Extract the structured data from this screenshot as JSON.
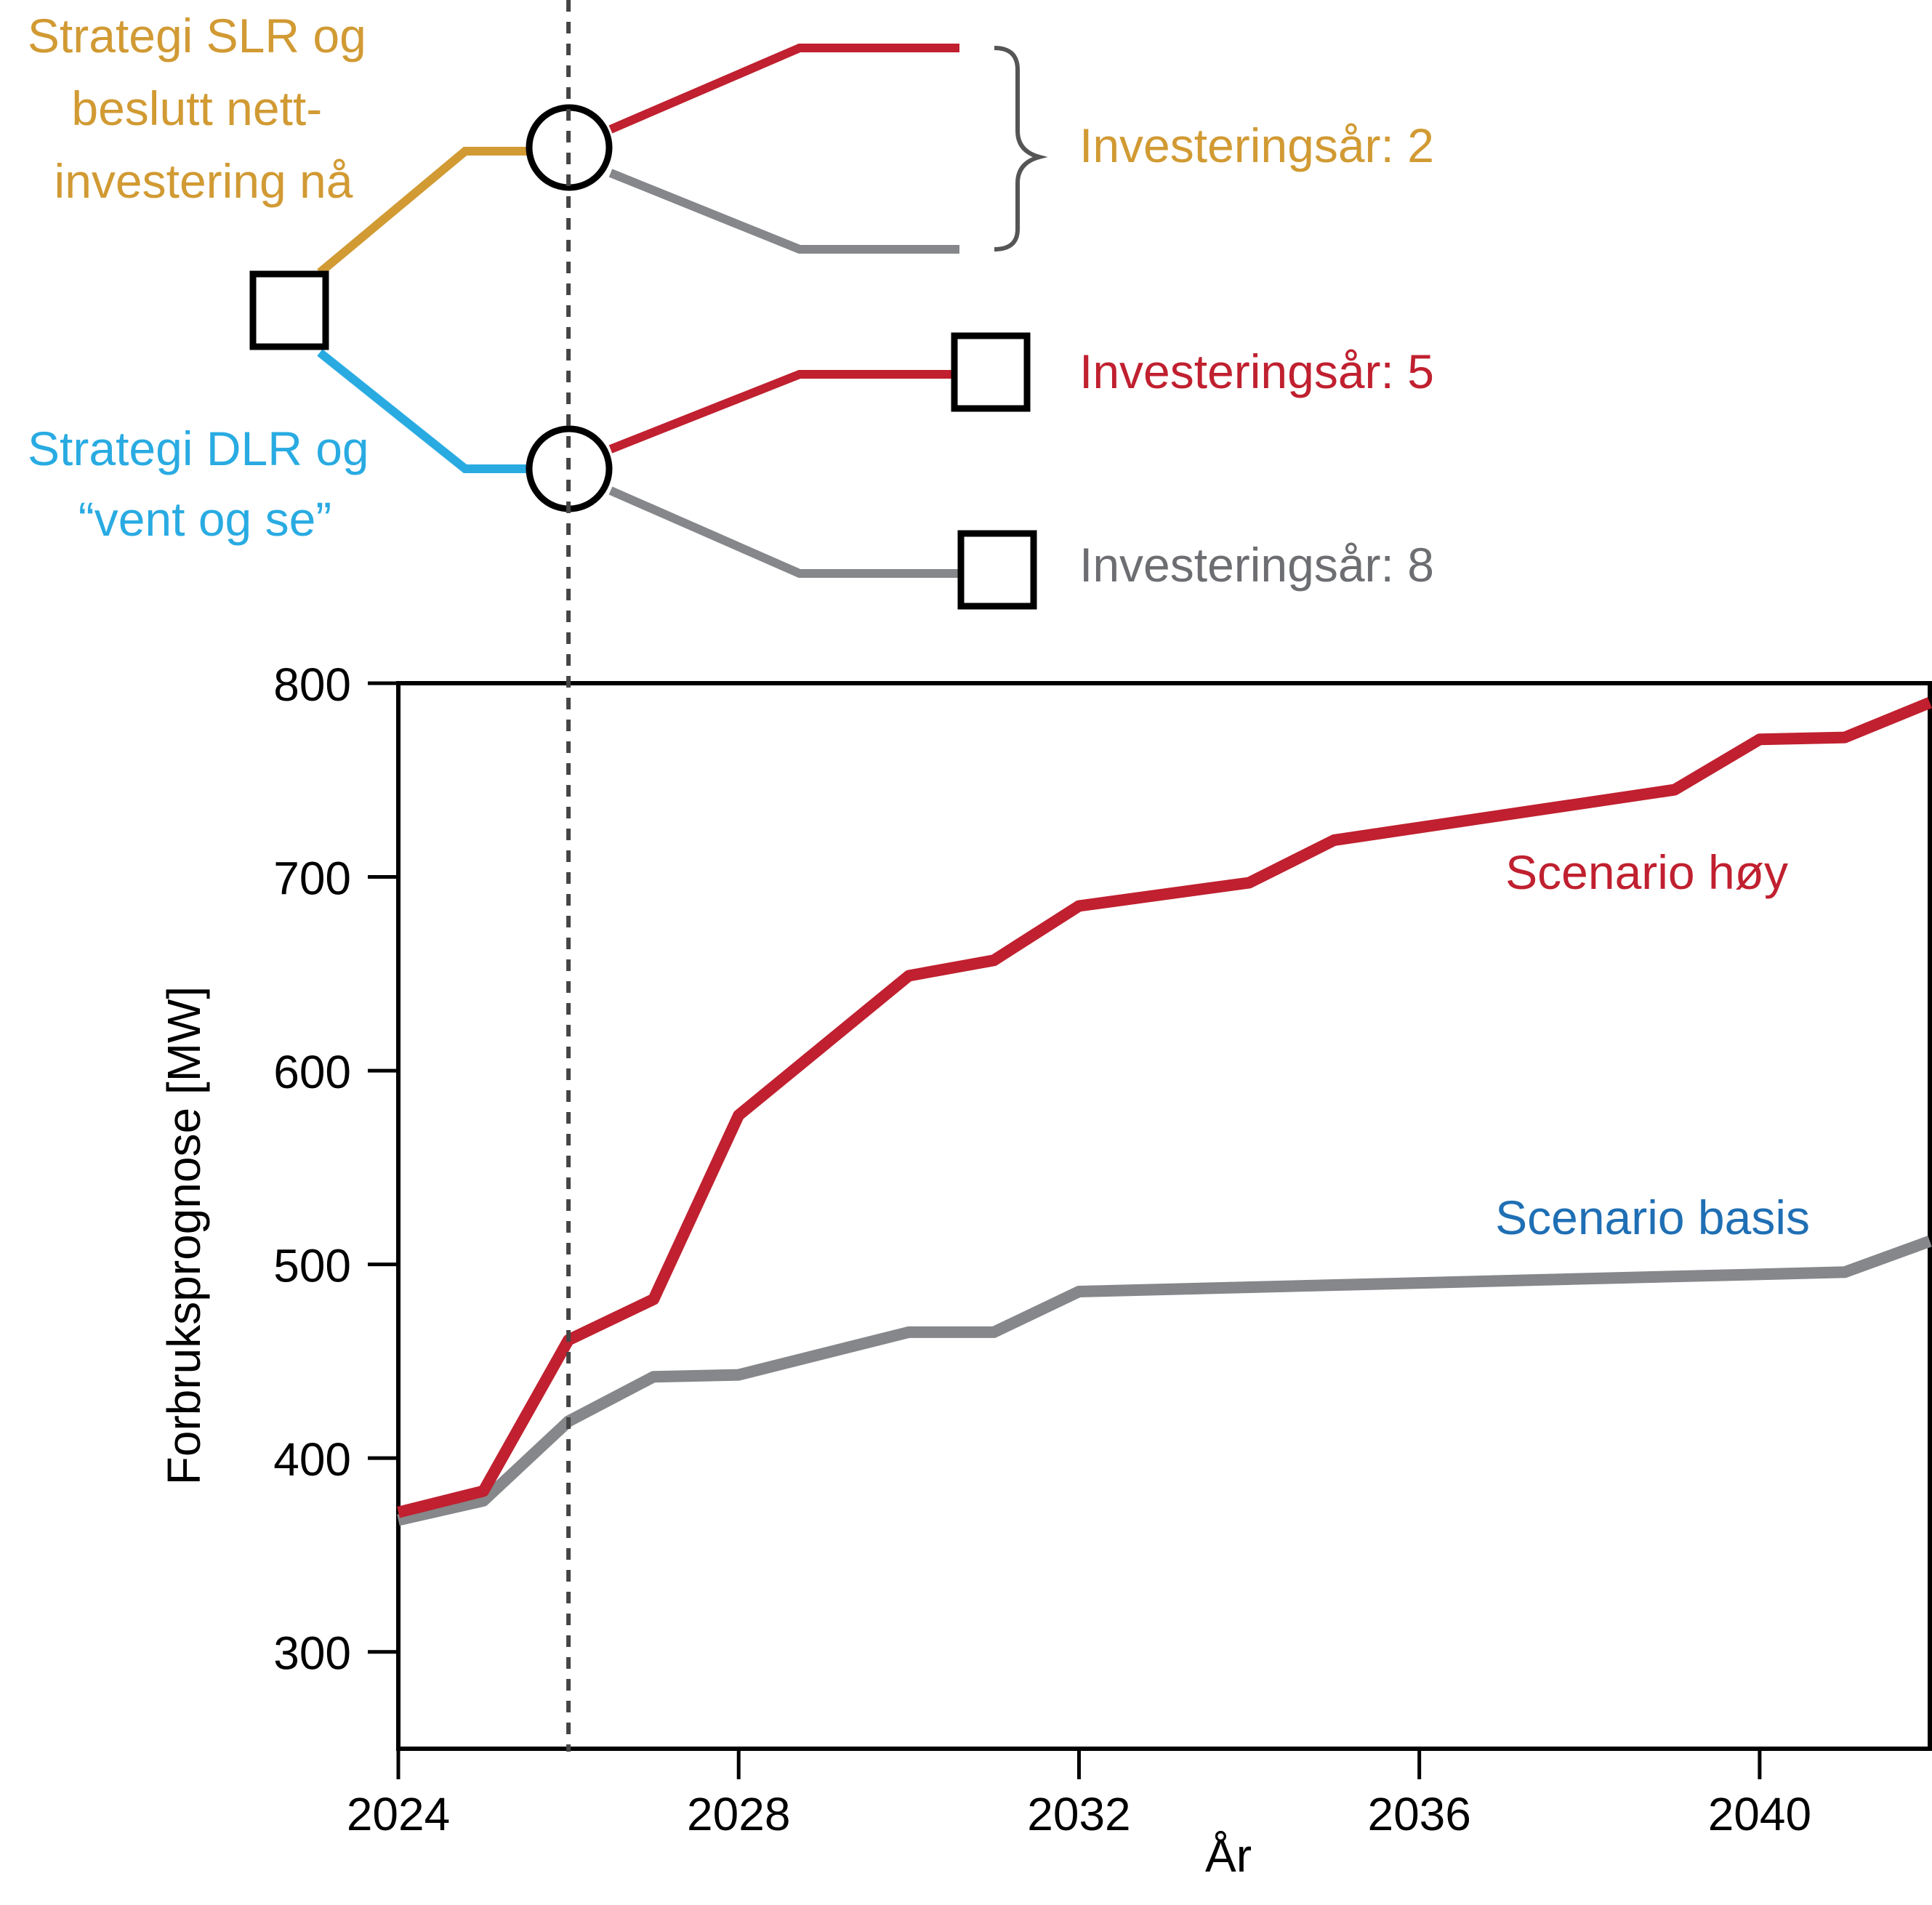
{
  "colors": {
    "gold": "#d19a33",
    "cyan": "#29abe2",
    "red": "#c0202f",
    "grey": "#85878a",
    "blue": "#1f6fb4",
    "black": "#000000",
    "dotted": "#444444"
  },
  "decision_tree": {
    "strategy_slr": [
      "Strategi SLR og",
      "beslutt nett-",
      "investering nå"
    ],
    "strategy_dlr": [
      "Strategi DLR og",
      "“vent og se”"
    ],
    "outcome_2": "Investeringsår: 2",
    "outcome_5": "Investeringsår: 5",
    "outcome_8": "Investeringsår: 8",
    "node_shapes": [
      "decision-square",
      "chance-circle",
      "chance-circle",
      "end-square",
      "end-square"
    ]
  },
  "chart_data": {
    "type": "line",
    "xlabel": "År",
    "ylabel": "Forbruksprognose [MW]",
    "xlim": [
      2024,
      2042
    ],
    "ylim": [
      250,
      800
    ],
    "xticks": [
      2024,
      2028,
      2032,
      2036,
      2040
    ],
    "yticks": [
      300,
      400,
      500,
      600,
      700,
      800
    ],
    "decision_year": 2026,
    "grid": false,
    "series": [
      {
        "name": "Scenario høy",
        "color": "#c0202f",
        "points": [
          [
            2024,
            372
          ],
          [
            2025,
            383
          ],
          [
            2026,
            461
          ],
          [
            2027,
            482
          ],
          [
            2028,
            577
          ],
          [
            2030,
            649
          ],
          [
            2031,
            657
          ],
          [
            2032,
            685
          ],
          [
            2034,
            697
          ],
          [
            2035,
            719
          ],
          [
            2039,
            745
          ],
          [
            2040,
            771
          ],
          [
            2041,
            772
          ],
          [
            2042,
            790
          ]
        ]
      },
      {
        "name": "Scenario basis",
        "color": "#85878a",
        "label_color": "#1f6fb4",
        "points": [
          [
            2024,
            368
          ],
          [
            2025,
            378
          ],
          [
            2026,
            419
          ],
          [
            2027,
            442
          ],
          [
            2028,
            443
          ],
          [
            2030,
            465
          ],
          [
            2031,
            465
          ],
          [
            2032,
            486
          ],
          [
            2041,
            496
          ],
          [
            2042,
            512
          ]
        ]
      }
    ]
  }
}
